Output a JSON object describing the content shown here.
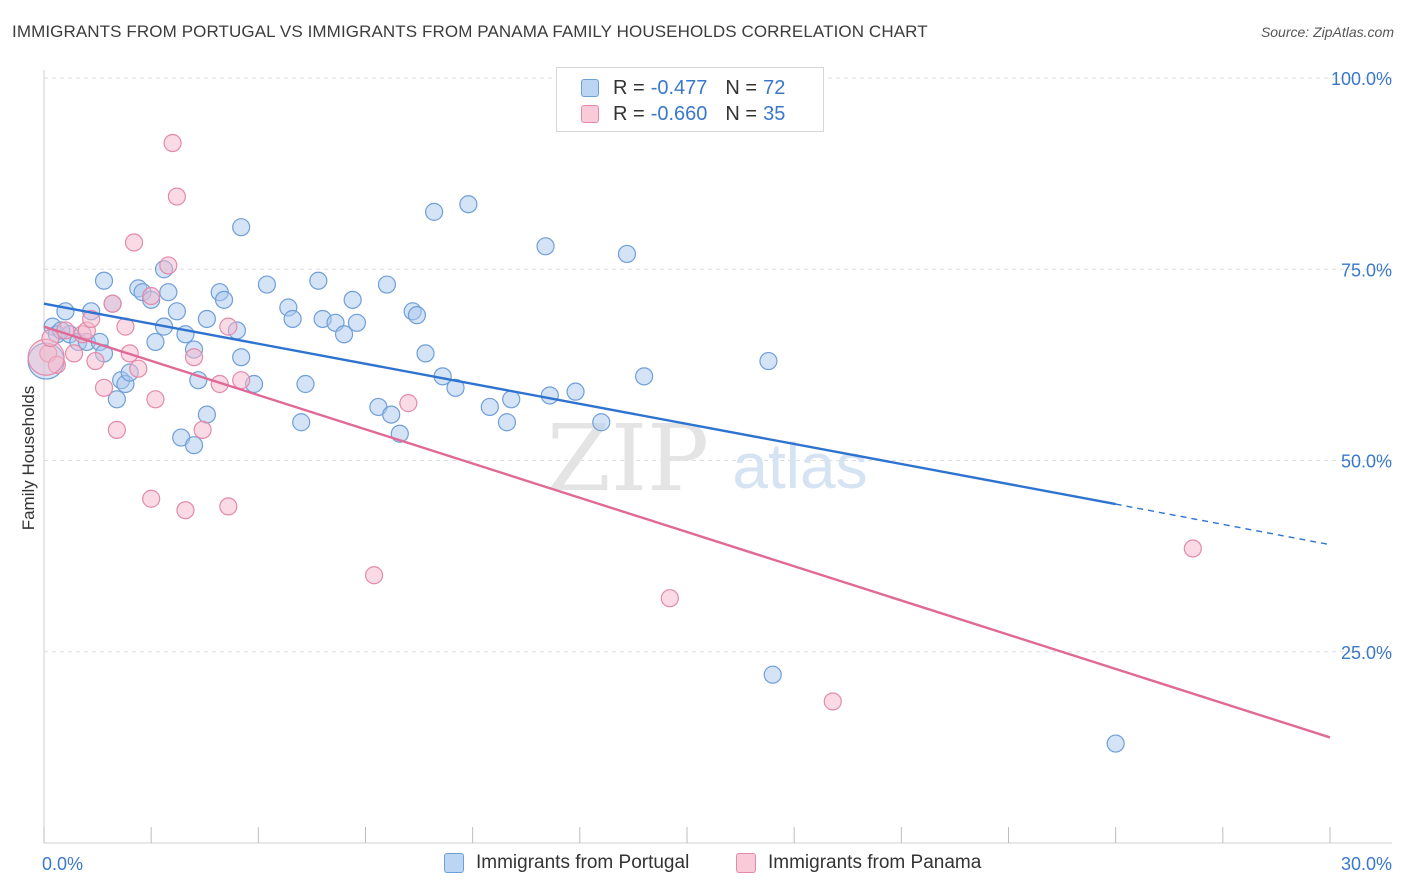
{
  "title": "IMMIGRANTS FROM PORTUGAL VS IMMIGRANTS FROM PANAMA FAMILY HOUSEHOLDS CORRELATION CHART",
  "source": "Source: ZipAtlas.com",
  "watermark": {
    "zip": "ZIP",
    "atlas": "atlas"
  },
  "legend": {
    "rows": [
      {
        "label": "R =",
        "r": "-0.477",
        "n_label": "N =",
        "n": "72"
      },
      {
        "label": "R =",
        "r": "-0.660",
        "n_label": "N =",
        "n": "35"
      }
    ]
  },
  "bottom_legend": {
    "portugal": "Immigrants from Portugal",
    "panama": "Immigrants from Panama"
  },
  "colors": {
    "portugal_fill": "#a9c8ee",
    "portugal_stroke": "#6f9fd8",
    "portugal_line": "#2f73d0",
    "panama_fill": "#f6b8cb",
    "panama_stroke": "#e48aa8",
    "panama_line": "#e06a95",
    "axis_text": "#3a78c9",
    "grid": "#dedede"
  },
  "chart_data": {
    "type": "scatter",
    "title": "IMMIGRANTS FROM PORTUGAL VS IMMIGRANTS FROM PANAMA FAMILY HOUSEHOLDS CORRELATION CHART",
    "xlabel": "",
    "ylabel": "Family Households",
    "xlim": [
      0,
      30
    ],
    "ylim": [
      0,
      100
    ],
    "x_tick_labels": [
      "0.0%",
      "30.0%"
    ],
    "y_ticks": [
      25,
      50,
      75,
      100
    ],
    "y_tick_labels": [
      "25.0%",
      "50.0%",
      "75.0%",
      "100.0%"
    ],
    "grid": true,
    "series": [
      {
        "name": "Immigrants from Portugal",
        "r": -0.477,
        "n": 72,
        "trend": {
          "x0": 0,
          "y0": 70.5,
          "x1": 25.0,
          "y1": 44.3,
          "dash_to_x": 30,
          "dash_to_y": 39.0
        },
        "points": [
          [
            0.2,
            67.5
          ],
          [
            0.3,
            66.5
          ],
          [
            0.5,
            69.5
          ],
          [
            0.6,
            66.5
          ],
          [
            0.8,
            65.5
          ],
          [
            1.0,
            65.5
          ],
          [
            1.1,
            69.5
          ],
          [
            1.3,
            65.5
          ],
          [
            1.4,
            64.0
          ],
          [
            1.4,
            73.5
          ],
          [
            1.6,
            70.5
          ],
          [
            1.7,
            58.0
          ],
          [
            1.8,
            60.5
          ],
          [
            1.9,
            60.0
          ],
          [
            2.0,
            61.5
          ],
          [
            2.2,
            72.5
          ],
          [
            2.3,
            72.0
          ],
          [
            2.5,
            71.0
          ],
          [
            2.6,
            65.5
          ],
          [
            2.8,
            75.0
          ],
          [
            2.8,
            67.5
          ],
          [
            2.9,
            72.0
          ],
          [
            3.1,
            69.5
          ],
          [
            3.2,
            53.0
          ],
          [
            3.3,
            66.5
          ],
          [
            3.5,
            52.0
          ],
          [
            3.5,
            64.5
          ],
          [
            3.6,
            60.5
          ],
          [
            3.8,
            56.0
          ],
          [
            3.8,
            68.5
          ],
          [
            4.1,
            72.0
          ],
          [
            4.2,
            71.0
          ],
          [
            4.5,
            67.0
          ],
          [
            4.6,
            63.5
          ],
          [
            4.6,
            80.5
          ],
          [
            4.9,
            60.0
          ],
          [
            5.2,
            73.0
          ],
          [
            5.7,
            70.0
          ],
          [
            5.8,
            68.5
          ],
          [
            6.0,
            55.0
          ],
          [
            6.1,
            60.0
          ],
          [
            6.4,
            73.5
          ],
          [
            6.5,
            68.5
          ],
          [
            6.8,
            68.0
          ],
          [
            7.0,
            66.5
          ],
          [
            7.2,
            71.0
          ],
          [
            7.3,
            68.0
          ],
          [
            7.8,
            57.0
          ],
          [
            8.0,
            73.0
          ],
          [
            8.1,
            56.0
          ],
          [
            8.3,
            53.5
          ],
          [
            8.6,
            69.5
          ],
          [
            8.7,
            69.0
          ],
          [
            8.9,
            64.0
          ],
          [
            9.1,
            82.5
          ],
          [
            9.3,
            61.0
          ],
          [
            9.6,
            59.5
          ],
          [
            9.9,
            83.5
          ],
          [
            10.4,
            57.0
          ],
          [
            10.8,
            55.0
          ],
          [
            10.9,
            58.0
          ],
          [
            11.7,
            78.0
          ],
          [
            11.8,
            58.5
          ],
          [
            12.4,
            59.0
          ],
          [
            13.0,
            55.0
          ],
          [
            13.6,
            77.0
          ],
          [
            14.0,
            61.0
          ],
          [
            16.9,
            63.0
          ],
          [
            17.0,
            22.0
          ],
          [
            25.0,
            13.0
          ],
          [
            0.05,
            63.0
          ],
          [
            0.4,
            67.0
          ]
        ]
      },
      {
        "name": "Immigrants from Panama",
        "r": -0.66,
        "n": 35,
        "trend": {
          "x0": 0,
          "y0": 67.5,
          "x1": 30,
          "y1": 13.8
        },
        "points": [
          [
            0.1,
            64.0
          ],
          [
            0.3,
            62.5
          ],
          [
            0.5,
            67.0
          ],
          [
            0.7,
            64.0
          ],
          [
            0.9,
            66.5
          ],
          [
            1.0,
            67.0
          ],
          [
            1.1,
            68.5
          ],
          [
            1.2,
            63.0
          ],
          [
            1.4,
            59.5
          ],
          [
            1.6,
            70.5
          ],
          [
            1.7,
            54.0
          ],
          [
            1.9,
            67.5
          ],
          [
            2.0,
            64.0
          ],
          [
            2.1,
            78.5
          ],
          [
            2.2,
            62.0
          ],
          [
            2.5,
            71.5
          ],
          [
            2.5,
            45.0
          ],
          [
            2.6,
            58.0
          ],
          [
            2.9,
            75.5
          ],
          [
            3.0,
            91.5
          ],
          [
            3.1,
            84.5
          ],
          [
            3.3,
            43.5
          ],
          [
            3.5,
            63.5
          ],
          [
            3.7,
            54.0
          ],
          [
            4.1,
            60.0
          ],
          [
            4.3,
            67.5
          ],
          [
            4.3,
            44.0
          ],
          [
            4.6,
            60.5
          ],
          [
            7.7,
            35.0
          ],
          [
            8.5,
            57.5
          ],
          [
            14.6,
            32.0
          ],
          [
            18.4,
            18.5
          ],
          [
            26.8,
            38.5
          ],
          [
            0.05,
            63.5
          ],
          [
            0.15,
            66.0
          ]
        ]
      }
    ]
  }
}
